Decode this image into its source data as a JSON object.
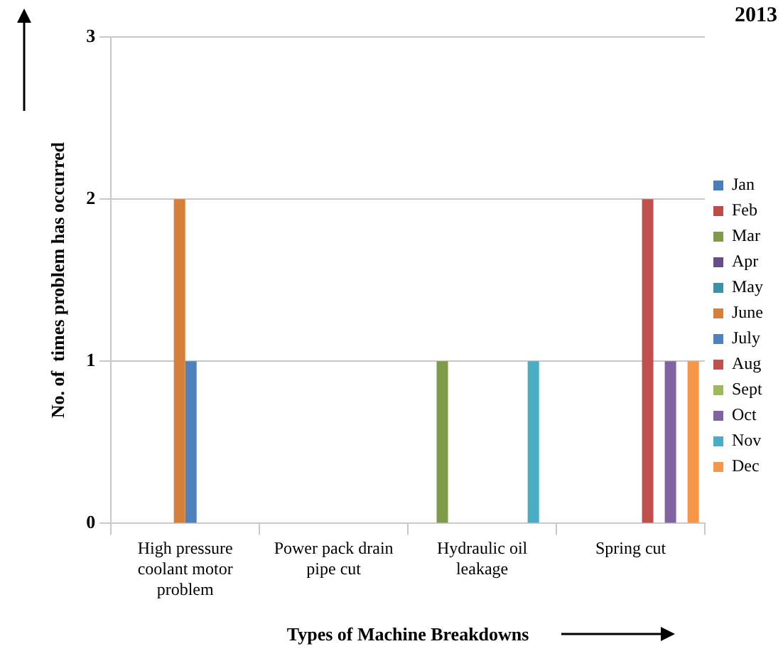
{
  "chart_data": {
    "type": "bar",
    "title": "2013",
    "xlabel": "Types of Machine Breakdowns",
    "ylabel": "No. of  times problem has occurred",
    "categories": [
      "High pressure coolant motor problem",
      "Power pack drain pipe cut",
      "Hydraulic oil leakage",
      "Spring cut"
    ],
    "series": [
      {
        "name": "Jan",
        "color": "#4a7ebb",
        "values": [
          0,
          0,
          0,
          0
        ]
      },
      {
        "name": "Feb",
        "color": "#be4b48",
        "values": [
          0,
          0,
          0,
          0
        ]
      },
      {
        "name": "Mar",
        "color": "#7f9a48",
        "values": [
          0,
          0,
          1,
          0
        ]
      },
      {
        "name": "Apr",
        "color": "#664d87",
        "values": [
          0,
          0,
          0,
          0
        ]
      },
      {
        "name": "May",
        "color": "#3b92a8",
        "values": [
          0,
          0,
          0,
          0
        ]
      },
      {
        "name": "June",
        "color": "#d47f3a",
        "values": [
          2,
          0,
          0,
          0
        ]
      },
      {
        "name": "July",
        "color": "#4f81bd",
        "values": [
          1,
          0,
          0,
          0
        ]
      },
      {
        "name": "Aug",
        "color": "#c0504d",
        "values": [
          0,
          0,
          0,
          2
        ]
      },
      {
        "name": "Sept",
        "color": "#9bbb59",
        "values": [
          0,
          0,
          0,
          0
        ]
      },
      {
        "name": "Oct",
        "color": "#8064a2",
        "values": [
          0,
          0,
          0,
          1
        ]
      },
      {
        "name": "Nov",
        "color": "#4bacc6",
        "values": [
          0,
          0,
          1,
          0
        ]
      },
      {
        "name": "Dec",
        "color": "#f79646",
        "values": [
          0,
          0,
          0,
          1
        ]
      }
    ],
    "ylim": [
      0,
      3
    ],
    "yticks": [
      0,
      1,
      2,
      3
    ],
    "grid": "y",
    "legend": "right"
  }
}
